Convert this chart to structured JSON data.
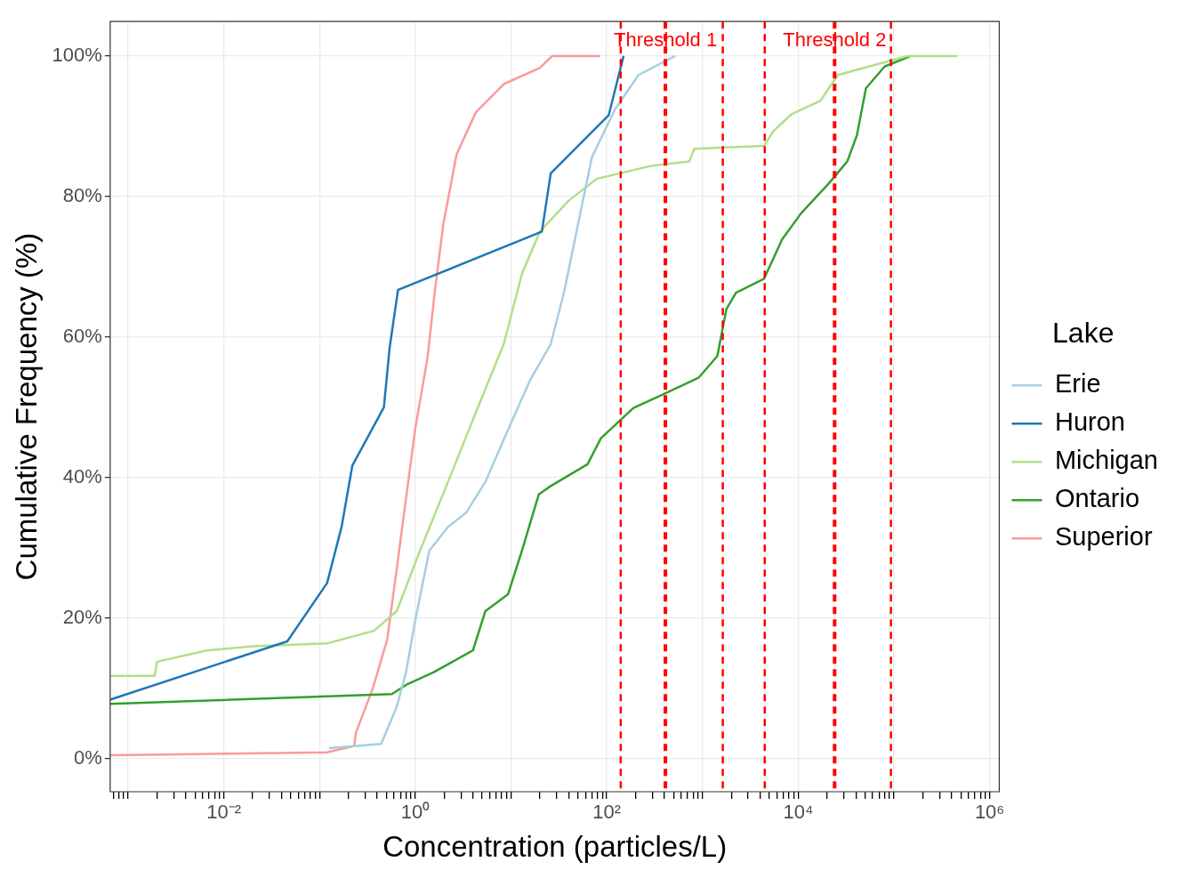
{
  "chart_data": {
    "type": "line",
    "xlabel": "Concentration (particles/L)",
    "ylabel": "Cumulative Frequency (%)",
    "legend_title": "Lake",
    "legend": "right",
    "grid": true,
    "log": "x",
    "marker": "none",
    "line_style": "solid",
    "xlim": [
      0.00065,
      1260000
    ],
    "ylim": [
      -4.7,
      104.9
    ],
    "xticks": [
      {
        "value": 0.0007,
        "label": null
      },
      {
        "value": 0.0008,
        "label": null
      },
      {
        "value": 0.0009,
        "label": null
      },
      {
        "value": 0.001,
        "label": null
      },
      {
        "value": 0.002,
        "label": null
      },
      {
        "value": 0.003,
        "label": null
      },
      {
        "value": 0.004,
        "label": null
      },
      {
        "value": 0.005,
        "label": null
      },
      {
        "value": 0.006,
        "label": null
      },
      {
        "value": 0.007,
        "label": null
      },
      {
        "value": 0.008,
        "label": null
      },
      {
        "value": 0.009,
        "label": null
      },
      {
        "value": 0.01,
        "label": "10⁻²"
      },
      {
        "value": 0.02,
        "label": null
      },
      {
        "value": 0.03,
        "label": null
      },
      {
        "value": 0.04,
        "label": null
      },
      {
        "value": 0.05,
        "label": null
      },
      {
        "value": 0.06,
        "label": null
      },
      {
        "value": 0.07,
        "label": null
      },
      {
        "value": 0.08,
        "label": null
      },
      {
        "value": 0.09,
        "label": null
      },
      {
        "value": 0.1,
        "label": null
      },
      {
        "value": 0.2,
        "label": null
      },
      {
        "value": 0.3,
        "label": null
      },
      {
        "value": 0.4,
        "label": null
      },
      {
        "value": 0.5,
        "label": null
      },
      {
        "value": 0.6,
        "label": null
      },
      {
        "value": 0.7,
        "label": null
      },
      {
        "value": 0.8,
        "label": null
      },
      {
        "value": 0.9,
        "label": null
      },
      {
        "value": 1,
        "label": "10⁰"
      },
      {
        "value": 2,
        "label": null
      },
      {
        "value": 3,
        "label": null
      },
      {
        "value": 4,
        "label": null
      },
      {
        "value": 5,
        "label": null
      },
      {
        "value": 6,
        "label": null
      },
      {
        "value": 7,
        "label": null
      },
      {
        "value": 8,
        "label": null
      },
      {
        "value": 9,
        "label": null
      },
      {
        "value": 10,
        "label": null
      },
      {
        "value": 20,
        "label": null
      },
      {
        "value": 30,
        "label": null
      },
      {
        "value": 40,
        "label": null
      },
      {
        "value": 50,
        "label": null
      },
      {
        "value": 60,
        "label": null
      },
      {
        "value": 70,
        "label": null
      },
      {
        "value": 80,
        "label": null
      },
      {
        "value": 90,
        "label": null
      },
      {
        "value": 100,
        "label": "10²"
      },
      {
        "value": 200,
        "label": null
      },
      {
        "value": 300,
        "label": null
      },
      {
        "value": 400,
        "label": null
      },
      {
        "value": 500,
        "label": null
      },
      {
        "value": 600,
        "label": null
      },
      {
        "value": 700,
        "label": null
      },
      {
        "value": 800,
        "label": null
      },
      {
        "value": 900,
        "label": null
      },
      {
        "value": 1000,
        "label": null
      },
      {
        "value": 2000,
        "label": null
      },
      {
        "value": 3000,
        "label": null
      },
      {
        "value": 4000,
        "label": null
      },
      {
        "value": 5000,
        "label": null
      },
      {
        "value": 6000,
        "label": null
      },
      {
        "value": 7000,
        "label": null
      },
      {
        "value": 8000,
        "label": null
      },
      {
        "value": 9000,
        "label": null
      },
      {
        "value": 10000,
        "label": "10⁴"
      },
      {
        "value": 20000,
        "label": null
      },
      {
        "value": 30000,
        "label": null
      },
      {
        "value": 40000,
        "label": null
      },
      {
        "value": 50000,
        "label": null
      },
      {
        "value": 60000,
        "label": null
      },
      {
        "value": 70000,
        "label": null
      },
      {
        "value": 80000,
        "label": null
      },
      {
        "value": 90000,
        "label": null
      },
      {
        "value": 100000,
        "label": null
      },
      {
        "value": 200000,
        "label": null
      },
      {
        "value": 300000,
        "label": null
      },
      {
        "value": 400000,
        "label": null
      },
      {
        "value": 500000,
        "label": null
      },
      {
        "value": 600000,
        "label": null
      },
      {
        "value": 700000,
        "label": null
      },
      {
        "value": 800000,
        "label": null
      },
      {
        "value": 900000,
        "label": null
      },
      {
        "value": 1000000,
        "label": "10⁶"
      }
    ],
    "yticks": [
      {
        "value": 0,
        "label": "0%"
      },
      {
        "value": 20,
        "label": "20%"
      },
      {
        "value": 40,
        "label": "40%"
      },
      {
        "value": 60,
        "label": "60%"
      },
      {
        "value": 80,
        "label": "80%"
      },
      {
        "value": 100,
        "label": "100%"
      }
    ],
    "series": [
      {
        "name": "Erie",
        "color": "#a6cee3",
        "x": [
          0.126,
          0.44,
          0.64,
          0.8,
          1.0,
          1.4,
          2.2,
          3.4,
          5.4,
          9.3,
          16,
          26,
          36,
          50,
          70,
          122,
          215,
          520
        ],
        "values": [
          1.5,
          2.1,
          7.4,
          12.3,
          19.7,
          29.6,
          33,
          35,
          39.4,
          46.8,
          54,
          59,
          66.5,
          76,
          85.6,
          92.4,
          97.3,
          100
        ]
      },
      {
        "name": "Huron",
        "color": "#1f78b4",
        "x": [
          0.00065,
          0.046,
          0.12,
          0.17,
          0.22,
          0.47,
          0.54,
          0.66,
          21,
          26,
          105,
          150
        ],
        "values": [
          8.4,
          16.7,
          25,
          33,
          41.7,
          50,
          58.5,
          66.7,
          75,
          83.3,
          91.6,
          100
        ]
      },
      {
        "name": "Michigan",
        "color": "#b2df8a",
        "x": [
          0.00065,
          0.0019,
          0.002,
          0.0066,
          0.02,
          0.12,
          0.37,
          0.64,
          1.12,
          2.2,
          4.3,
          8.4,
          13,
          20,
          40,
          78,
          300,
          730,
          820,
          4400,
          5500,
          8500,
          17000,
          26000,
          80000,
          140000,
          460000
        ],
        "values": [
          11.8,
          11.8,
          13.8,
          15.4,
          16,
          16.4,
          18.2,
          21,
          29.6,
          39.4,
          49.3,
          59,
          69,
          75,
          79.4,
          82.5,
          84.4,
          85,
          86.8,
          87.2,
          89.3,
          91.7,
          93.6,
          97.3,
          99.1,
          100,
          100
        ]
      },
      {
        "name": "Ontario",
        "color": "#33a02c",
        "x": [
          0.00065,
          0.57,
          0.8,
          1.56,
          4.0,
          5.4,
          9.3,
          13,
          19.5,
          26,
          63,
          87,
          190,
          370,
          910,
          1430,
          1780,
          2240,
          4400,
          6800,
          10700,
          21000,
          32600,
          41000,
          51000,
          80000,
          150000
        ],
        "values": [
          7.8,
          9.2,
          10.5,
          12.3,
          15.4,
          21,
          23.4,
          29.6,
          37.6,
          38.8,
          41.9,
          45.6,
          49.9,
          51.7,
          54.2,
          57.3,
          64,
          66.3,
          68.3,
          73.9,
          77.6,
          81.9,
          85,
          88.7,
          95.4,
          98.5,
          100
        ]
      },
      {
        "name": "Superior",
        "color": "#fb9a99",
        "x": [
          0.00065,
          0.12,
          0.23,
          0.24,
          0.36,
          0.51,
          0.64,
          0.8,
          1.0,
          1.34,
          1.6,
          1.96,
          2.7,
          4.3,
          8.4,
          20,
          27,
          85
        ],
        "values": [
          0.5,
          0.9,
          1.8,
          3.7,
          10,
          17,
          27,
          37,
          47,
          57,
          66.5,
          76,
          86,
          92,
          96,
          98.3,
          100,
          100
        ]
      }
    ],
    "ref_lines": [
      {
        "axis": "x",
        "value": 140,
        "label": null,
        "color": "#ff0000",
        "line_style": "dashed"
      },
      {
        "axis": "x",
        "value": 410,
        "label": "Threshold 1",
        "color": "#ff0000",
        "line_style": "dashed"
      },
      {
        "axis": "x",
        "value": 1630,
        "label": null,
        "color": "#ff0000",
        "line_style": "dashed"
      },
      {
        "axis": "x",
        "value": 4470,
        "label": null,
        "color": "#ff0000",
        "line_style": "dashed"
      },
      {
        "axis": "x",
        "value": 24000,
        "label": "Threshold 2",
        "color": "#ff0000",
        "line_style": "dashed"
      },
      {
        "axis": "x",
        "value": 93000,
        "label": null,
        "color": "#ff0000",
        "line_style": "dashed"
      }
    ]
  }
}
